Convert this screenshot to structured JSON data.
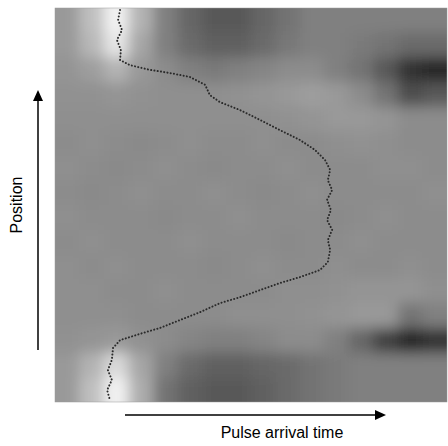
{
  "chart_data": {
    "type": "heatmap",
    "x_label": "Pulse arrival time",
    "y_label": "Position",
    "xlim": [
      0,
      100
    ],
    "ylim": [
      0,
      100
    ],
    "tick_labels": false,
    "zlim": [
      0,
      1
    ],
    "cells": [
      [
        0.6,
        0.75,
        0.95,
        0.7,
        0.5,
        0.4,
        0.35,
        0.35,
        0.4,
        0.45,
        0.5,
        0.5,
        0.5,
        0.5,
        0.5,
        0.5
      ],
      [
        0.6,
        0.72,
        0.9,
        0.65,
        0.5,
        0.42,
        0.38,
        0.38,
        0.42,
        0.47,
        0.5,
        0.5,
        0.48,
        0.45,
        0.42,
        0.42
      ],
      [
        0.58,
        0.62,
        0.7,
        0.6,
        0.55,
        0.5,
        0.48,
        0.5,
        0.52,
        0.55,
        0.55,
        0.5,
        0.45,
        0.35,
        0.2,
        0.15
      ],
      [
        0.57,
        0.57,
        0.58,
        0.57,
        0.56,
        0.56,
        0.56,
        0.57,
        0.58,
        0.6,
        0.62,
        0.6,
        0.55,
        0.45,
        0.3,
        0.35
      ],
      [
        0.56,
        0.56,
        0.56,
        0.56,
        0.56,
        0.56,
        0.56,
        0.56,
        0.56,
        0.57,
        0.58,
        0.6,
        0.6,
        0.58,
        0.55,
        0.55
      ],
      [
        0.55,
        0.56,
        0.55,
        0.54,
        0.55,
        0.56,
        0.55,
        0.55,
        0.56,
        0.55,
        0.55,
        0.56,
        0.57,
        0.56,
        0.55,
        0.55
      ],
      [
        0.56,
        0.55,
        0.54,
        0.55,
        0.56,
        0.55,
        0.54,
        0.55,
        0.55,
        0.56,
        0.55,
        0.55,
        0.55,
        0.56,
        0.56,
        0.55
      ],
      [
        0.55,
        0.54,
        0.55,
        0.56,
        0.55,
        0.55,
        0.56,
        0.55,
        0.54,
        0.55,
        0.56,
        0.55,
        0.55,
        0.55,
        0.55,
        0.56
      ],
      [
        0.56,
        0.55,
        0.55,
        0.55,
        0.54,
        0.55,
        0.55,
        0.56,
        0.55,
        0.55,
        0.55,
        0.54,
        0.55,
        0.56,
        0.55,
        0.55
      ],
      [
        0.55,
        0.56,
        0.55,
        0.55,
        0.55,
        0.56,
        0.55,
        0.55,
        0.55,
        0.54,
        0.55,
        0.55,
        0.56,
        0.55,
        0.55,
        0.55
      ],
      [
        0.56,
        0.55,
        0.56,
        0.55,
        0.55,
        0.55,
        0.54,
        0.55,
        0.56,
        0.55,
        0.55,
        0.56,
        0.55,
        0.55,
        0.56,
        0.55
      ],
      [
        0.56,
        0.56,
        0.55,
        0.55,
        0.56,
        0.55,
        0.55,
        0.55,
        0.55,
        0.56,
        0.56,
        0.57,
        0.58,
        0.58,
        0.58,
        0.56
      ],
      [
        0.56,
        0.56,
        0.56,
        0.55,
        0.55,
        0.55,
        0.55,
        0.56,
        0.56,
        0.56,
        0.57,
        0.58,
        0.6,
        0.6,
        0.45,
        0.5
      ],
      [
        0.57,
        0.58,
        0.6,
        0.57,
        0.55,
        0.52,
        0.5,
        0.5,
        0.52,
        0.55,
        0.55,
        0.5,
        0.4,
        0.25,
        0.15,
        0.2
      ],
      [
        0.6,
        0.7,
        0.85,
        0.65,
        0.5,
        0.42,
        0.38,
        0.38,
        0.4,
        0.42,
        0.45,
        0.48,
        0.5,
        0.5,
        0.5,
        0.5
      ],
      [
        0.6,
        0.75,
        0.95,
        0.68,
        0.45,
        0.38,
        0.35,
        0.35,
        0.38,
        0.42,
        0.45,
        0.48,
        0.5,
        0.5,
        0.5,
        0.5
      ]
    ],
    "series": [
      {
        "type": "line",
        "color": "#2a2a2a",
        "line_style": "dotted",
        "x": [
          16.6,
          16.1,
          17.1,
          15.8,
          16.8,
          16.6,
          19.1,
          24.2,
          29.3,
          34.4,
          38.3,
          39.5,
          42.1,
          47.2,
          52.3,
          57.4,
          62.5,
          66.3,
          68.9,
          70.2,
          69.6,
          70.7,
          69.4,
          70.4,
          69.4,
          70.7,
          69.6,
          70.2,
          69.6,
          67.6,
          62.5,
          57.4,
          52.3,
          47.2,
          42.1,
          37.0,
          31.9,
          26.8,
          21.7,
          16.6,
          14.8,
          14.5,
          13.5,
          14.5,
          13.3,
          14.0
        ],
        "values": [
          99.5,
          97.0,
          94.4,
          91.9,
          89.3,
          86.8,
          85.5,
          84.3,
          83.5,
          82.5,
          80.5,
          77.9,
          76.1,
          74.1,
          71.6,
          69.0,
          66.5,
          64.0,
          61.4,
          58.9,
          56.3,
          53.8,
          51.3,
          48.7,
          46.2,
          43.7,
          41.1,
          38.6,
          35.5,
          33.5,
          31.7,
          30.2,
          28.4,
          26.6,
          25.1,
          22.8,
          20.8,
          18.8,
          17.3,
          15.7,
          13.7,
          10.7,
          8.1,
          5.6,
          3.0,
          0.5
        ]
      }
    ]
  }
}
